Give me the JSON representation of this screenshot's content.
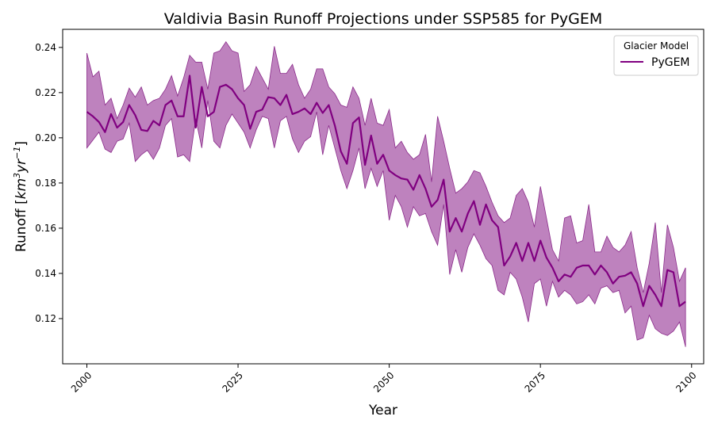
{
  "chart_data": {
    "type": "line",
    "title": "Valdivia Basin Runoff Projections under SSP585 for PyGEM",
    "xlabel": "Year",
    "ylabel_parts": {
      "prefix": "Runoff [",
      "km": "km",
      "exp3": "3",
      "yr": "yr",
      "expm1": "−1",
      "suffix": "]"
    },
    "xlim": [
      1996,
      2102
    ],
    "ylim": [
      0.1,
      0.248
    ],
    "x_ticks": [
      2000,
      2025,
      2050,
      2075,
      2100
    ],
    "x_tick_labels": [
      "2000",
      "2025",
      "2050",
      "2075",
      "2100"
    ],
    "y_ticks": [
      0.12,
      0.14,
      0.16,
      0.18,
      0.2,
      0.22,
      0.24
    ],
    "y_tick_labels": [
      "0.12",
      "0.14",
      "0.16",
      "0.18",
      "0.20",
      "0.22",
      "0.24"
    ],
    "grid": false,
    "legend": {
      "title": "Glacier Model",
      "placement": "top-right"
    },
    "colors": {
      "line": "#800080",
      "band": "#9b3f9b"
    },
    "series": [
      {
        "name": "PyGEM",
        "x_start": 2000,
        "x_step": 1,
        "mean": [
          0.2115,
          0.2095,
          0.207,
          0.2025,
          0.2105,
          0.2045,
          0.207,
          0.2145,
          0.21,
          0.2035,
          0.203,
          0.2075,
          0.2055,
          0.2145,
          0.2165,
          0.2095,
          0.2095,
          0.2275,
          0.2045,
          0.2225,
          0.2095,
          0.2115,
          0.2225,
          0.2235,
          0.2215,
          0.2175,
          0.2145,
          0.204,
          0.2115,
          0.2125,
          0.218,
          0.2175,
          0.2145,
          0.219,
          0.2105,
          0.2115,
          0.213,
          0.2105,
          0.2155,
          0.211,
          0.2145,
          0.2055,
          0.194,
          0.1885,
          0.2065,
          0.209,
          0.188,
          0.201,
          0.1885,
          0.1925,
          0.1855,
          0.1835,
          0.182,
          0.1815,
          0.177,
          0.1835,
          0.1775,
          0.1695,
          0.1725,
          0.1815,
          0.1585,
          0.1645,
          0.1585,
          0.1665,
          0.172,
          0.1615,
          0.1705,
          0.1635,
          0.1605,
          0.1435,
          0.1475,
          0.1535,
          0.1455,
          0.1535,
          0.1455,
          0.1545,
          0.147,
          0.1425,
          0.1365,
          0.1395,
          0.1385,
          0.1425,
          0.1435,
          0.1435,
          0.1395,
          0.1435,
          0.1405,
          0.1355,
          0.1385,
          0.139,
          0.1405,
          0.1355,
          0.1255,
          0.1345,
          0.1305,
          0.1255,
          0.1415,
          0.1405,
          0.1255,
          0.1275
        ],
        "upper": [
          0.2375,
          0.227,
          0.2295,
          0.2145,
          0.2175,
          0.2085,
          0.2145,
          0.222,
          0.218,
          0.2225,
          0.2145,
          0.2165,
          0.2175,
          0.2215,
          0.2275,
          0.2185,
          0.2265,
          0.2365,
          0.2335,
          0.2335,
          0.2215,
          0.2375,
          0.2385,
          0.2425,
          0.2385,
          0.2375,
          0.2205,
          0.2235,
          0.2315,
          0.2265,
          0.2215,
          0.2405,
          0.2285,
          0.2285,
          0.2325,
          0.2235,
          0.2175,
          0.2215,
          0.2305,
          0.2305,
          0.2225,
          0.2195,
          0.2145,
          0.2135,
          0.2225,
          0.2175,
          0.2055,
          0.2175,
          0.2065,
          0.2055,
          0.2125,
          0.1955,
          0.1985,
          0.1935,
          0.1905,
          0.1925,
          0.2015,
          0.1805,
          0.2095,
          0.1985,
          0.1865,
          0.1755,
          0.1775,
          0.1805,
          0.1855,
          0.1845,
          0.1785,
          0.1715,
          0.1655,
          0.1625,
          0.1645,
          0.1745,
          0.1775,
          0.1715,
          0.1605,
          0.1785,
          0.1645,
          0.1505,
          0.1455,
          0.1645,
          0.1655,
          0.1535,
          0.1545,
          0.1705,
          0.1495,
          0.1495,
          0.1565,
          0.1515,
          0.1495,
          0.1525,
          0.1585,
          0.1425,
          0.1315,
          0.1445,
          0.1625,
          0.1315,
          0.1615,
          0.1515,
          0.1365,
          0.1425
        ],
        "lower": [
          0.1955,
          0.199,
          0.2025,
          0.195,
          0.1935,
          0.1985,
          0.1995,
          0.2065,
          0.1895,
          0.1925,
          0.1945,
          0.1905,
          0.1955,
          0.2055,
          0.2085,
          0.1915,
          0.1925,
          0.1895,
          0.2085,
          0.1955,
          0.2165,
          0.1985,
          0.1955,
          0.2055,
          0.2105,
          0.2065,
          0.2025,
          0.1955,
          0.2035,
          0.2095,
          0.2085,
          0.1955,
          0.2075,
          0.2095,
          0.1995,
          0.1935,
          0.1985,
          0.2005,
          0.2115,
          0.1925,
          0.2055,
          0.1955,
          0.1855,
          0.1775,
          0.1855,
          0.1955,
          0.1775,
          0.1865,
          0.1785,
          0.1855,
          0.1635,
          0.1745,
          0.1695,
          0.1605,
          0.1695,
          0.1655,
          0.1665,
          0.1585,
          0.1525,
          0.1705,
          0.1395,
          0.1505,
          0.1405,
          0.1515,
          0.1575,
          0.1525,
          0.1465,
          0.1435,
          0.1325,
          0.1305,
          0.1405,
          0.1375,
          0.1295,
          0.1185,
          0.1355,
          0.1375,
          0.1255,
          0.1365,
          0.1295,
          0.1325,
          0.1305,
          0.1265,
          0.1275,
          0.1305,
          0.1265,
          0.1335,
          0.1345,
          0.1315,
          0.1325,
          0.1225,
          0.1255,
          0.1105,
          0.1115,
          0.1215,
          0.1155,
          0.1135,
          0.1125,
          0.1145,
          0.1185,
          0.1075
        ]
      }
    ]
  }
}
